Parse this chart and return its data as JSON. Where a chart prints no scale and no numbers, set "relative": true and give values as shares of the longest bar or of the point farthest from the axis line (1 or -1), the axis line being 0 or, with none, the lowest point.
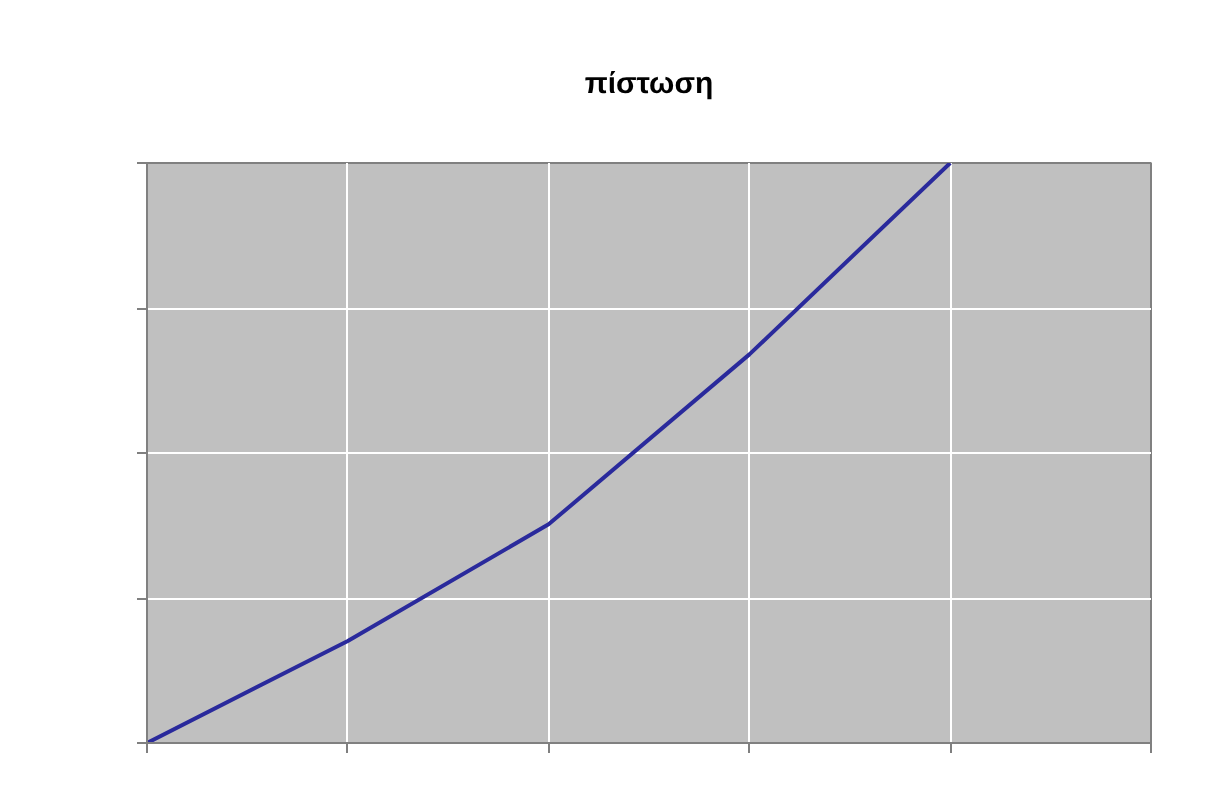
{
  "chart_data": {
    "type": "line",
    "title": "πίστωση",
    "categories": [
      null,
      null,
      null,
      null,
      null,
      null
    ],
    "series": [
      {
        "color": "#2a2a9c",
        "values": [
          0,
          0.176,
          0.377,
          0.67,
          1.0,
          null
        ]
      }
    ],
    "relative": true,
    "grid": true,
    "marker": "none",
    "line_style": "solid"
  }
}
